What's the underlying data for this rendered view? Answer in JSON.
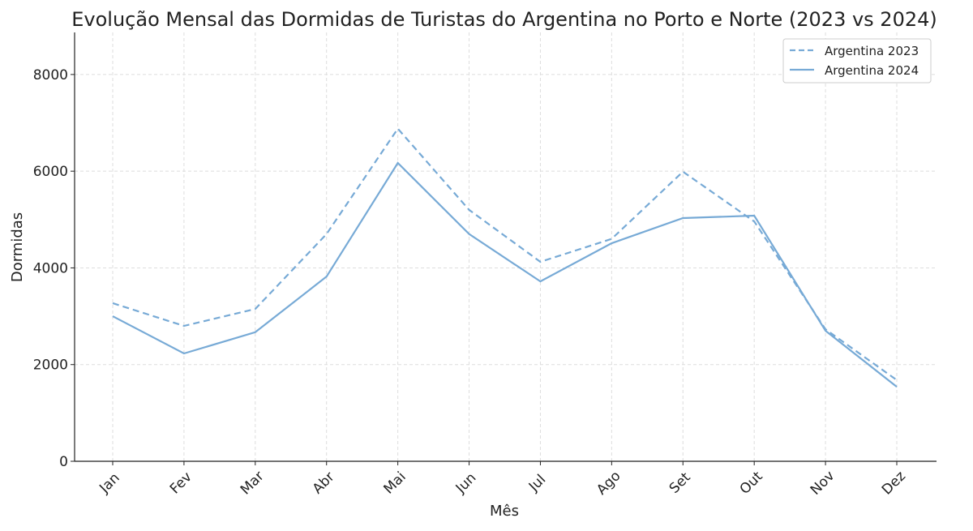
{
  "chart_data": {
    "type": "line",
    "title": "Evolução Mensal das Dormidas de Turistas do Argentina no Porto e Norte (2023 vs 2024)",
    "xlabel": "Mês",
    "ylabel": "Dormidas",
    "categories": [
      "Jan",
      "Fev",
      "Mar",
      "Abr",
      "Mai",
      "Jun",
      "Jul",
      "Ago",
      "Set",
      "Out",
      "Nov",
      "Dez"
    ],
    "yticks": [
      0,
      2000,
      4000,
      6000,
      8000
    ],
    "ylim": [
      0,
      8870
    ],
    "grid": true,
    "legend_position": "top-right",
    "color": "#77aad6",
    "series": [
      {
        "name": "Argentina 2023",
        "style": "dashed",
        "values": [
          3270,
          2800,
          3150,
          4700,
          6880,
          5200,
          4125,
          4600,
          5990,
          4960,
          2730,
          1680
        ]
      },
      {
        "name": "Argentina 2024",
        "style": "solid",
        "values": [
          3000,
          2230,
          2670,
          3820,
          6170,
          4700,
          3720,
          4510,
          5030,
          5080,
          2700,
          1540
        ]
      }
    ]
  }
}
